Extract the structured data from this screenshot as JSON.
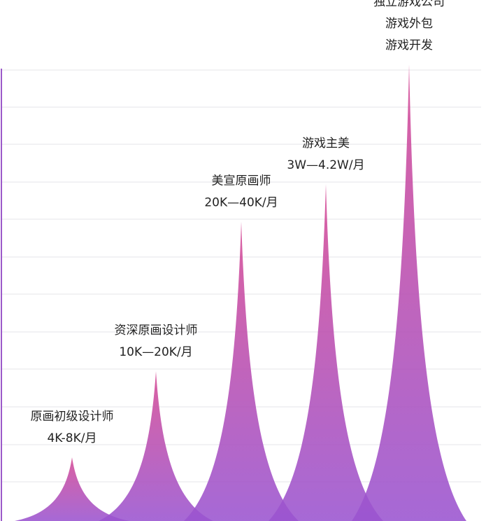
{
  "chart_data": {
    "type": "area",
    "categories": [
      "原画初级设计师",
      "资深原画设计师",
      "美宣原画师",
      "游戏主美",
      "独立游戏公司"
    ],
    "values": [
      1.7,
      4.0,
      8.0,
      9.0,
      12.2
    ],
    "ylim": [
      0,
      12.2
    ],
    "grid": true,
    "labels": [
      [
        "原画初级设计师",
        "4K-8K/月"
      ],
      [
        "资深原画设计师",
        "10K—20K/月"
      ],
      [
        "美宣原画师",
        "20K—40K/月"
      ],
      [
        "游戏主美",
        "3W—4.2W/月"
      ],
      [
        "独立游戏公司",
        "游戏外包",
        "游戏开发"
      ]
    ],
    "colors": {
      "top": "#d64a94",
      "bottom": "#9a54d0",
      "axis": "#9b59c9",
      "grid": "#e6e6ea"
    }
  }
}
